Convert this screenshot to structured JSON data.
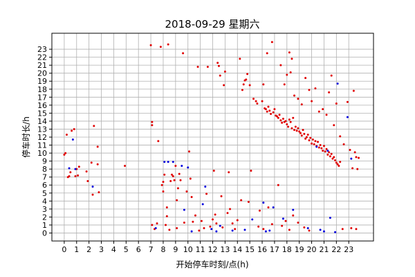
{
  "chart_data": {
    "type": "scatter",
    "title": "2018-09-29 星期六",
    "xlabel": "开始停车时刻/点(h)",
    "ylabel": "停车时长/h",
    "xlim": [
      -1,
      25
    ],
    "ylim": [
      -1,
      25
    ],
    "xticks": [
      0,
      1,
      2,
      3,
      4,
      5,
      6,
      7,
      8,
      9,
      10,
      11,
      12,
      13,
      14,
      15,
      16,
      17,
      18,
      19,
      20,
      21,
      22,
      23
    ],
    "yticks": [
      0,
      1,
      2,
      3,
      4,
      5,
      6,
      7,
      8,
      9,
      10,
      11,
      12,
      13,
      14,
      15,
      16,
      17,
      18,
      19,
      20,
      21,
      22,
      23
    ],
    "grid": true,
    "colors": {
      "red_series": "#e00000",
      "blue_series": "#0000dd"
    },
    "series": [
      {
        "color": "red",
        "points": [
          [
            0.0,
            9.8
          ],
          [
            0.1,
            10.0
          ],
          [
            0.2,
            12.3
          ],
          [
            0.3,
            7.0
          ],
          [
            0.4,
            7.1
          ],
          [
            0.5,
            7.6
          ],
          [
            0.6,
            12.8
          ],
          [
            0.8,
            13.0
          ],
          [
            0.9,
            7.1
          ],
          [
            1.0,
            8.0
          ],
          [
            1.1,
            7.2
          ],
          [
            1.2,
            8.3
          ],
          [
            1.8,
            7.7
          ],
          [
            1.9,
            6.5
          ],
          [
            2.2,
            8.8
          ],
          [
            2.3,
            4.8
          ],
          [
            2.4,
            13.4
          ],
          [
            2.7,
            10.8
          ],
          [
            2.7,
            8.6
          ],
          [
            2.8,
            5.1
          ],
          [
            4.9,
            8.4
          ],
          [
            7.0,
            23.5
          ],
          [
            7.1,
            13.5
          ],
          [
            7.1,
            13.9
          ],
          [
            7.1,
            1.0
          ],
          [
            7.3,
            0.5
          ],
          [
            7.5,
            1.2
          ],
          [
            7.6,
            11.5
          ],
          [
            7.8,
            23.3
          ],
          [
            7.9,
            6.0
          ],
          [
            8.0,
            5.2
          ],
          [
            8.0,
            6.4
          ],
          [
            8.1,
            7.3
          ],
          [
            8.2,
            1.0
          ],
          [
            8.3,
            3.2
          ],
          [
            8.3,
            2.1
          ],
          [
            8.4,
            23.6
          ],
          [
            8.5,
            0.4
          ],
          [
            8.6,
            6.5
          ],
          [
            8.7,
            7.3
          ],
          [
            8.8,
            7.1
          ],
          [
            8.9,
            6.6
          ],
          [
            9.0,
            8.4
          ],
          [
            9.1,
            4.1
          ],
          [
            9.1,
            0.6
          ],
          [
            9.2,
            5.6
          ],
          [
            9.3,
            7.4
          ],
          [
            9.4,
            6.6
          ],
          [
            9.6,
            22.5
          ],
          [
            9.7,
            1.3
          ],
          [
            9.9,
            5.2
          ],
          [
            10.1,
            10.2
          ],
          [
            10.2,
            6.8
          ],
          [
            10.3,
            4.5
          ],
          [
            10.4,
            1.4
          ],
          [
            10.6,
            2.2
          ],
          [
            10.8,
            20.8
          ],
          [
            10.9,
            0.3
          ],
          [
            11.1,
            1.5
          ],
          [
            11.3,
            0.6
          ],
          [
            11.5,
            4.9
          ],
          [
            11.6,
            20.8
          ],
          [
            11.8,
            0.8
          ],
          [
            12.0,
            1.7
          ],
          [
            12.1,
            7.8
          ],
          [
            12.2,
            2.3
          ],
          [
            12.3,
            1.2
          ],
          [
            12.4,
            21.3
          ],
          [
            12.5,
            20.9
          ],
          [
            12.6,
            19.7
          ],
          [
            12.7,
            4.6
          ],
          [
            12.8,
            0.7
          ],
          [
            12.9,
            18.5
          ],
          [
            13.0,
            20.2
          ],
          [
            13.2,
            2.5
          ],
          [
            13.3,
            7.6
          ],
          [
            13.4,
            3.0
          ],
          [
            13.6,
            1.2
          ],
          [
            13.8,
            0.5
          ],
          [
            14.0,
            1.6
          ],
          [
            14.2,
            21.8
          ],
          [
            14.3,
            4.1
          ],
          [
            14.4,
            17.9
          ],
          [
            14.5,
            18.6
          ],
          [
            14.6,
            19.1
          ],
          [
            14.7,
            19.2
          ],
          [
            14.8,
            19.9
          ],
          [
            14.9,
            3.9
          ],
          [
            15.0,
            18.5
          ],
          [
            15.1,
            7.8
          ],
          [
            15.3,
            16.8
          ],
          [
            15.5,
            16.5
          ],
          [
            15.6,
            16.2
          ],
          [
            15.7,
            0.8
          ],
          [
            15.8,
            2.8
          ],
          [
            16.0,
            16.5
          ],
          [
            16.1,
            18.6
          ],
          [
            16.2,
            15.6
          ],
          [
            16.3,
            15.5
          ],
          [
            16.4,
            15.2
          ],
          [
            16.4,
            22.5
          ],
          [
            16.5,
            15.8
          ],
          [
            16.6,
            15.3
          ],
          [
            16.7,
            14.9
          ],
          [
            16.8,
            23.9
          ],
          [
            16.9,
            15.1
          ],
          [
            17.0,
            15.5
          ],
          [
            17.1,
            14.7
          ],
          [
            17.2,
            14.6
          ],
          [
            17.3,
            14.4
          ],
          [
            17.4,
            14.8
          ],
          [
            17.5,
            14.1
          ],
          [
            17.6,
            13.8
          ],
          [
            17.7,
            14.3
          ],
          [
            17.8,
            13.9
          ],
          [
            17.9,
            14.0
          ],
          [
            18.0,
            13.6
          ],
          [
            18.1,
            13.3
          ],
          [
            18.2,
            14.2
          ],
          [
            18.3,
            13.9
          ],
          [
            18.4,
            13.1
          ],
          [
            18.5,
            14.4
          ],
          [
            18.6,
            12.9
          ],
          [
            18.7,
            13.3
          ],
          [
            18.8,
            12.8
          ],
          [
            18.9,
            13.1
          ],
          [
            19.0,
            12.7
          ],
          [
            19.1,
            12.5
          ],
          [
            19.2,
            12.2
          ],
          [
            19.3,
            12.9
          ],
          [
            19.4,
            12.4
          ],
          [
            19.5,
            11.8
          ],
          [
            19.6,
            12.0
          ],
          [
            19.7,
            12.3
          ],
          [
            19.8,
            11.6
          ],
          [
            19.9,
            11.9
          ],
          [
            20.0,
            11.2
          ],
          [
            20.1,
            11.7
          ],
          [
            20.2,
            11.1
          ],
          [
            20.3,
            11.5
          ],
          [
            20.4,
            10.9
          ],
          [
            20.5,
            11.4
          ],
          [
            20.6,
            10.7
          ],
          [
            20.7,
            11.0
          ],
          [
            20.8,
            10.6
          ],
          [
            20.9,
            10.3
          ],
          [
            21.0,
            10.9
          ],
          [
            21.1,
            10.2
          ],
          [
            21.2,
            10.5
          ],
          [
            21.3,
            9.8
          ],
          [
            21.4,
            10.1
          ],
          [
            21.5,
            9.6
          ],
          [
            21.6,
            9.9
          ],
          [
            21.7,
            9.3
          ],
          [
            21.8,
            9.5
          ],
          [
            21.9,
            9.1
          ],
          [
            22.0,
            8.8
          ],
          [
            22.1,
            8.6
          ],
          [
            22.2,
            8.4
          ],
          [
            22.3,
            8.9
          ],
          [
            16.1,
            0.5
          ],
          [
            16.5,
            3.2
          ],
          [
            16.8,
            1.1
          ],
          [
            17.3,
            6.0
          ],
          [
            17.6,
            0.9
          ],
          [
            17.9,
            1.5
          ],
          [
            18.2,
            0.4
          ],
          [
            18.5,
            2.2
          ],
          [
            18.9,
            1.3
          ],
          [
            19.4,
            0.7
          ],
          [
            19.8,
            0.3
          ],
          [
            17.5,
            21.0
          ],
          [
            17.8,
            18.6
          ],
          [
            18.0,
            19.8
          ],
          [
            18.2,
            22.6
          ],
          [
            18.3,
            20.1
          ],
          [
            18.4,
            21.8
          ],
          [
            18.6,
            17.2
          ],
          [
            18.9,
            16.8
          ],
          [
            19.2,
            16.1
          ],
          [
            19.5,
            19.4
          ],
          [
            19.8,
            17.9
          ],
          [
            20.0,
            16.5
          ],
          [
            20.3,
            18.1
          ],
          [
            20.6,
            15.2
          ],
          [
            20.9,
            15.5
          ],
          [
            21.2,
            14.8
          ],
          [
            21.4,
            17.6
          ],
          [
            21.6,
            19.7
          ],
          [
            21.8,
            13.5
          ],
          [
            22.0,
            16.2
          ],
          [
            22.3,
            12.1
          ],
          [
            22.6,
            11.1
          ],
          [
            22.9,
            16.4
          ],
          [
            23.1,
            10.4
          ],
          [
            23.3,
            8.1
          ],
          [
            23.4,
            17.8
          ],
          [
            23.5,
            10.1
          ],
          [
            23.6,
            9.5
          ],
          [
            23.7,
            8.0
          ],
          [
            23.8,
            9.4
          ],
          [
            22.5,
            0.5
          ],
          [
            23.2,
            0.6
          ],
          [
            23.6,
            0.5
          ]
        ]
      },
      {
        "color": "blue",
        "points": [
          [
            0.4,
            8.1
          ],
          [
            0.7,
            11.7
          ],
          [
            0.9,
            8.0
          ],
          [
            2.3,
            5.8
          ],
          [
            7.4,
            0.6
          ],
          [
            8.1,
            8.9
          ],
          [
            8.4,
            8.9
          ],
          [
            8.8,
            8.9
          ],
          [
            9.5,
            8.4
          ],
          [
            9.7,
            2.9
          ],
          [
            10.0,
            8.2
          ],
          [
            10.3,
            0.2
          ],
          [
            11.4,
            5.8
          ],
          [
            11.2,
            3.6
          ],
          [
            11.9,
            0.5
          ],
          [
            12.3,
            0.2
          ],
          [
            12.6,
            0.9
          ],
          [
            13.6,
            0.3
          ],
          [
            14.6,
            0.4
          ],
          [
            15.2,
            1.7
          ],
          [
            16.1,
            3.8
          ],
          [
            16.3,
            0.2
          ],
          [
            16.6,
            0.3
          ],
          [
            16.9,
            3.2
          ],
          [
            17.7,
            1.8
          ],
          [
            18.5,
            2.9
          ],
          [
            19.7,
            0.6
          ],
          [
            20.7,
            0.4
          ],
          [
            21.0,
            0.2
          ],
          [
            21.5,
            1.9
          ],
          [
            21.9,
            0.1
          ],
          [
            22.1,
            18.7
          ],
          [
            22.9,
            14.5
          ],
          [
            23.2,
            9.3
          ],
          [
            20.4,
            10.8
          ],
          [
            21.3,
            10.3
          ]
        ]
      }
    ]
  }
}
